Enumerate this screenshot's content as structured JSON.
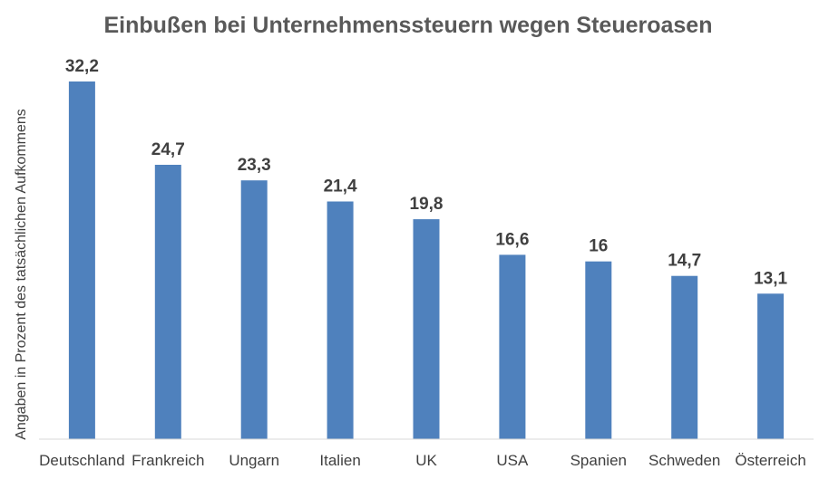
{
  "chart_data": {
    "type": "bar",
    "title": "Einbußen bei Unternehmenssteuern wegen Steueroasen",
    "xlabel": "",
    "ylabel": "Angaben in Prozent des tatsächlichen Aufkommens",
    "categories": [
      "Deutschland",
      "Frankreich",
      "Ungarn",
      "Italien",
      "UK",
      "USA",
      "Spanien",
      "Schweden",
      "Österreich"
    ],
    "values": [
      32.2,
      24.7,
      23.3,
      21.4,
      19.8,
      16.6,
      16,
      14.7,
      13.1
    ],
    "data_labels": [
      "32,2",
      "24,7",
      "23,3",
      "21,4",
      "19,8",
      "16,6",
      "16",
      "14,7",
      "13,1"
    ],
    "ylim": [
      0,
      32.2
    ],
    "grid": false,
    "legend": "none",
    "bar_color": "#4F81BD",
    "axis_color": "#D9D9D9"
  }
}
